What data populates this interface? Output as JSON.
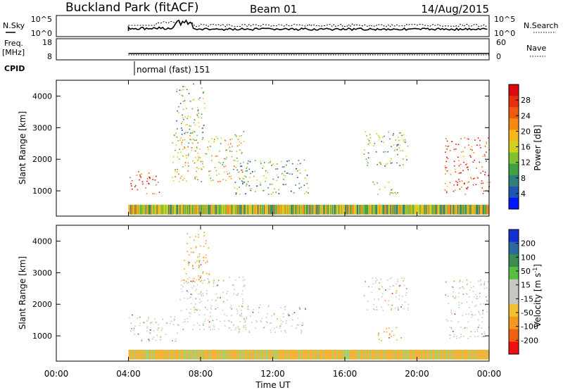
{
  "header": {
    "site": "Buckland Park (fitACF)",
    "beam": "Beam 01",
    "date": "14/Aug/2015"
  },
  "noise_panel": {
    "left_label": "N.Sky",
    "right_label": "N.Search",
    "left_ticks": [
      "10^5",
      "10^0"
    ],
    "right_ticks": [
      "10^5",
      "10^0"
    ]
  },
  "freq_panel": {
    "left_label_1": "Freq.",
    "left_label_2": "[MHz]",
    "right_label": "Nave",
    "left_ticks": [
      "18",
      "8"
    ],
    "right_ticks": [
      "60",
      "0"
    ]
  },
  "cpid": {
    "label": "CPID",
    "program": "normal (fast) 151"
  },
  "chart_data": [
    {
      "type": "heatmap",
      "name": "power",
      "ylabel": "Slant Range [km]",
      "xlabel": "",
      "y_ticks": [
        "1000",
        "2000",
        "3000",
        "4000"
      ],
      "ylim": [
        200,
        4500
      ],
      "colorbar_label": "Power [dB]",
      "colorbar_ticks": [
        "4",
        "8",
        "12",
        "16",
        "20",
        "24",
        "28"
      ],
      "colorbar_colors": [
        "#0018ff",
        "#1f55b4",
        "#2f7f7a",
        "#3fa044",
        "#7fc230",
        "#cfd020",
        "#f6b81a",
        "#f48a14",
        "#ee5a10",
        "#e5300e",
        "#dc0a0a"
      ],
      "regions": [
        {
          "t0": 4.0,
          "t1": 5.7,
          "r0": 900,
          "r1": 1650,
          "level": 0.9
        },
        {
          "t0": 6.4,
          "t1": 10.4,
          "r0": 1300,
          "r1": 2900,
          "level": 0.55
        },
        {
          "t0": 6.6,
          "t1": 8.2,
          "r0": 2600,
          "r1": 4400,
          "level": 0.35
        },
        {
          "t0": 9.8,
          "t1": 14.0,
          "r0": 900,
          "r1": 2000,
          "level": 0.3
        },
        {
          "t0": 17.0,
          "t1": 19.5,
          "r0": 1800,
          "r1": 2900,
          "level": 0.35
        },
        {
          "t0": 17.5,
          "t1": 19.0,
          "r0": 900,
          "r1": 1300,
          "level": 0.5
        },
        {
          "t0": 21.5,
          "t1": 24.0,
          "r0": 900,
          "r1": 2700,
          "level": 0.85
        }
      ]
    },
    {
      "type": "heatmap",
      "name": "velocity",
      "ylabel": "Slant Range [km]",
      "xlabel": "Time UT",
      "y_ticks": [
        "1000",
        "2000",
        "3000",
        "4000"
      ],
      "ylim": [
        200,
        4500
      ],
      "x_ticks": [
        "00:00",
        "04:00",
        "08:00",
        "12:00",
        "16:00",
        "20:00",
        "00:00"
      ],
      "xlim": [
        0,
        24
      ],
      "colorbar_label": "Velocity [m s",
      "colorbar_label_sup": "-1",
      "colorbar_label_end": "]",
      "colorbar_ticks": [
        "-200",
        "-100",
        "-50",
        "-15",
        "15",
        "50",
        "100",
        "200"
      ],
      "colorbar_colors": [
        "#ee1010",
        "#f06010",
        "#f49820",
        "#f0c030",
        "#c8c8c0",
        "#c8c8c0",
        "#55c040",
        "#3c8c50",
        "#2a6aa0",
        "#1530d0"
      ],
      "regions": [
        {
          "t0": 4.0,
          "t1": 6.8,
          "r0": 850,
          "r1": 1700,
          "color": "#c8c8c0"
        },
        {
          "t0": 6.8,
          "t1": 10.5,
          "r0": 1200,
          "r1": 2900,
          "color": "#c8c8c0"
        },
        {
          "t0": 7.0,
          "t1": 8.5,
          "r0": 2700,
          "r1": 4300,
          "color": "#f4a020"
        },
        {
          "t0": 10.0,
          "t1": 13.8,
          "r0": 1100,
          "r1": 2000,
          "color": "#c8c8c0"
        },
        {
          "t0": 17.0,
          "t1": 19.5,
          "r0": 1800,
          "r1": 2900,
          "color": "#c8c8c0"
        },
        {
          "t0": 17.8,
          "t1": 19.2,
          "r0": 850,
          "r1": 1300,
          "color": "#f4a020"
        },
        {
          "t0": 21.5,
          "t1": 24.0,
          "r0": 900,
          "r1": 2800,
          "color": "#c8c8c0"
        }
      ]
    }
  ]
}
